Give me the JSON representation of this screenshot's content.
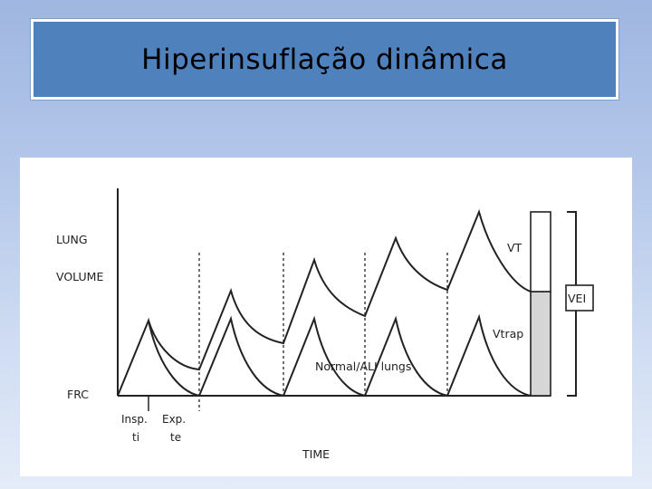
{
  "slide": {
    "title": "Hiperinsuflação dinâmica"
  },
  "diagram": {
    "y_label_line1": "LUNG",
    "y_label_line2": "VOLUME",
    "frc_label": "FRC",
    "x_label": "TIME",
    "insp_label": "Insp.",
    "insp_sub": "ti",
    "exp_label": "Exp.",
    "exp_sub": "te",
    "normal_label": "Normal/ALI lungs",
    "vt_label": "VT",
    "vtrap_label": "Vtrap",
    "vei_label": "VEI"
  }
}
